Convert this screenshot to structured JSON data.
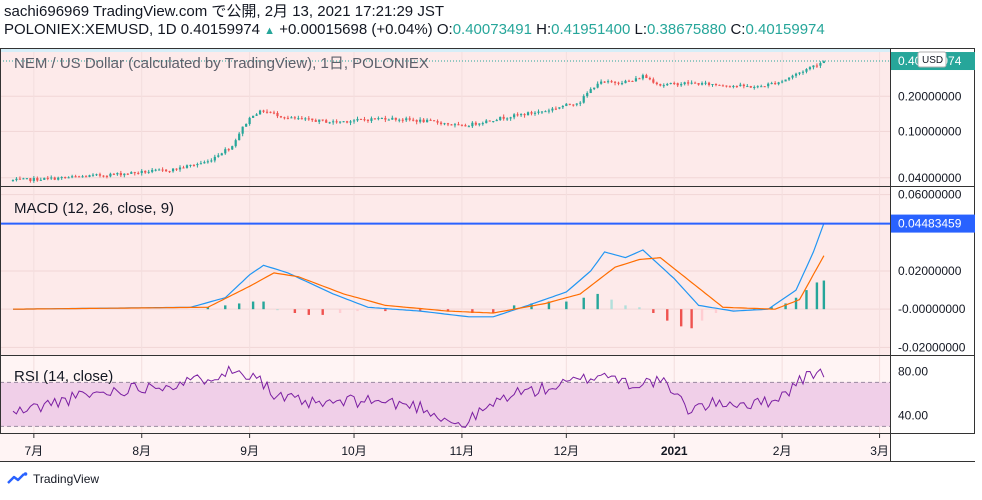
{
  "header": {
    "line1": "sachi696969 TradingView.com で公開, 2月 13, 2021 17:21:29 JST",
    "symbol": "POLONIEX:XEMUSD, 1D",
    "last": "0.40159974",
    "change_arrow": "▲",
    "change": "+0.00015698 (+0.04%)",
    "o_label": "O:",
    "o": "0.40073491",
    "h_label": "H:",
    "h": "0.41951400",
    "l_label": "L:",
    "l": "0.38675880",
    "c_label": "C:",
    "c": "0.40159974"
  },
  "chart_data": [
    {
      "type": "candlestick",
      "title": "NEM / US Dollar (calculated by TradingView), 1日, POLONIEX",
      "currency_badge": "USD",
      "last_price_label": "0.40159974",
      "y_scale": "log",
      "ylim": [
        0.034,
        0.48
      ],
      "y_ticks": [
        "0.20000000",
        "0.10000000",
        "0.04000000"
      ],
      "y_tick_values": [
        0.2,
        0.1,
        0.04
      ],
      "x_tick_labels": [
        "7月",
        "8月",
        "9月",
        "10月",
        "11月",
        "12月",
        "2021",
        "2月",
        "3月"
      ],
      "close_path": [
        [
          "2020-06-25",
          0.038
        ],
        [
          "2020-07-10",
          0.04
        ],
        [
          "2020-07-25",
          0.043
        ],
        [
          "2020-08-10",
          0.047
        ],
        [
          "2020-08-20",
          0.055
        ],
        [
          "2020-08-27",
          0.075
        ],
        [
          "2020-09-02",
          0.14
        ],
        [
          "2020-09-05",
          0.15
        ],
        [
          "2020-09-12",
          0.13
        ],
        [
          "2020-09-25",
          0.12
        ],
        [
          "2020-10-10",
          0.13
        ],
        [
          "2020-10-25",
          0.12
        ],
        [
          "2020-11-01",
          0.11
        ],
        [
          "2020-11-12",
          0.13
        ],
        [
          "2020-11-25",
          0.15
        ],
        [
          "2020-12-05",
          0.18
        ],
        [
          "2020-12-10",
          0.26
        ],
        [
          "2020-12-20",
          0.27
        ],
        [
          "2020-12-23",
          0.3
        ],
        [
          "2020-12-28",
          0.25
        ],
        [
          "2021-01-05",
          0.26
        ],
        [
          "2021-01-15",
          0.25
        ],
        [
          "2021-01-25",
          0.24
        ],
        [
          "2021-02-01",
          0.27
        ],
        [
          "2021-02-07",
          0.33
        ],
        [
          "2021-02-13",
          0.4
        ]
      ],
      "grid": true
    },
    {
      "type": "line",
      "title": "MACD (12, 26, close, 9)",
      "last_value_label": "0.04483459",
      "ylim": [
        -0.024,
        0.064
      ],
      "y_ticks": [
        "0.06000000",
        "0.02000000",
        "-0.00000000",
        "-0.02000000"
      ],
      "y_tick_values": [
        0.06,
        0.02,
        0.0,
        -0.02
      ],
      "macd_line": [
        [
          "2020-06-25",
          0.0
        ],
        [
          "2020-08-15",
          0.001
        ],
        [
          "2020-08-25",
          0.006
        ],
        [
          "2020-09-01",
          0.018
        ],
        [
          "2020-09-05",
          0.023
        ],
        [
          "2020-09-12",
          0.019
        ],
        [
          "2020-09-25",
          0.008
        ],
        [
          "2020-10-05",
          0.001
        ],
        [
          "2020-10-20",
          -0.001
        ],
        [
          "2020-11-03",
          -0.004
        ],
        [
          "2020-11-10",
          -0.004
        ],
        [
          "2020-11-20",
          0.002
        ],
        [
          "2020-12-01",
          0.009
        ],
        [
          "2020-12-08",
          0.02
        ],
        [
          "2020-12-12",
          0.03
        ],
        [
          "2020-12-18",
          0.027
        ],
        [
          "2020-12-23",
          0.031
        ],
        [
          "2021-01-01",
          0.016
        ],
        [
          "2021-01-08",
          0.002
        ],
        [
          "2021-01-18",
          -0.001
        ],
        [
          "2021-01-28",
          0.0
        ],
        [
          "2021-02-05",
          0.01
        ],
        [
          "2021-02-10",
          0.03
        ],
        [
          "2021-02-13",
          0.045
        ]
      ],
      "signal_line": [
        [
          "2020-06-25",
          0.0
        ],
        [
          "2020-08-20",
          0.001
        ],
        [
          "2020-09-01",
          0.012
        ],
        [
          "2020-09-08",
          0.019
        ],
        [
          "2020-09-15",
          0.017
        ],
        [
          "2020-09-28",
          0.008
        ],
        [
          "2020-10-10",
          0.002
        ],
        [
          "2020-10-28",
          -0.001
        ],
        [
          "2020-11-10",
          -0.002
        ],
        [
          "2020-11-25",
          0.003
        ],
        [
          "2020-12-05",
          0.008
        ],
        [
          "2020-12-15",
          0.022
        ],
        [
          "2020-12-22",
          0.026
        ],
        [
          "2020-12-28",
          0.027
        ],
        [
          "2021-01-06",
          0.014
        ],
        [
          "2021-01-15",
          0.001
        ],
        [
          "2021-01-30",
          0.0
        ],
        [
          "2021-02-06",
          0.005
        ],
        [
          "2021-02-13",
          0.028
        ]
      ],
      "histogram": [
        [
          "2020-08-20",
          0.001
        ],
        [
          "2020-08-25",
          0.002
        ],
        [
          "2020-08-29",
          0.003
        ],
        [
          "2020-09-02",
          0.004
        ],
        [
          "2020-09-05",
          0.004
        ],
        [
          "2020-09-09",
          0.0
        ],
        [
          "2020-09-14",
          -0.002
        ],
        [
          "2020-09-18",
          -0.003
        ],
        [
          "2020-09-22",
          -0.003
        ],
        [
          "2020-09-27",
          -0.002
        ],
        [
          "2020-10-02",
          -0.001
        ],
        [
          "2020-10-10",
          -0.001
        ],
        [
          "2020-10-20",
          -0.001
        ],
        [
          "2020-10-28",
          -0.001
        ],
        [
          "2020-11-04",
          -0.002
        ],
        [
          "2020-11-10",
          -0.002
        ],
        [
          "2020-11-16",
          0.002
        ],
        [
          "2020-11-21",
          0.003
        ],
        [
          "2020-11-26",
          0.004
        ],
        [
          "2020-12-01",
          0.004
        ],
        [
          "2020-12-06",
          0.006
        ],
        [
          "2020-12-10",
          0.008
        ],
        [
          "2020-12-14",
          0.005
        ],
        [
          "2020-12-18",
          0.002
        ],
        [
          "2020-12-22",
          0.001
        ],
        [
          "2020-12-26",
          -0.002
        ],
        [
          "2020-12-30",
          -0.006
        ],
        [
          "2021-01-03",
          -0.009
        ],
        [
          "2021-01-06",
          -0.01
        ],
        [
          "2021-01-09",
          -0.006
        ],
        [
          "2021-01-13",
          -0.002
        ],
        [
          "2021-01-18",
          -0.001
        ],
        [
          "2021-01-24",
          0.0
        ],
        [
          "2021-01-29",
          0.001
        ],
        [
          "2021-02-02",
          0.003
        ],
        [
          "2021-02-05",
          0.006
        ],
        [
          "2021-02-08",
          0.01
        ],
        [
          "2021-02-11",
          0.014
        ],
        [
          "2021-02-13",
          0.015
        ]
      ],
      "grid": true
    },
    {
      "type": "line",
      "title": "RSI (14, close)",
      "ylim": [
        24,
        94
      ],
      "band": [
        30,
        70
      ],
      "y_ticks": [
        "80.00",
        "40.00"
      ],
      "y_tick_values": [
        80,
        40
      ],
      "rsi": [
        [
          "2020-06-25",
          42
        ],
        [
          "2020-07-15",
          58
        ],
        [
          "2020-08-01",
          66
        ],
        [
          "2020-08-15",
          70
        ],
        [
          "2020-08-25",
          80
        ],
        [
          "2020-09-03",
          78
        ],
        [
          "2020-09-08",
          57
        ],
        [
          "2020-09-20",
          50
        ],
        [
          "2020-10-05",
          54
        ],
        [
          "2020-10-20",
          48
        ],
        [
          "2020-11-01",
          30
        ],
        [
          "2020-11-05",
          40
        ],
        [
          "2020-11-15",
          60
        ],
        [
          "2020-11-25",
          64
        ],
        [
          "2020-12-05",
          72
        ],
        [
          "2020-12-12",
          78
        ],
        [
          "2020-12-20",
          68
        ],
        [
          "2020-12-28",
          72
        ],
        [
          "2021-01-05",
          46
        ],
        [
          "2021-01-15",
          52
        ],
        [
          "2021-01-25",
          50
        ],
        [
          "2021-02-01",
          58
        ],
        [
          "2021-02-07",
          74
        ],
        [
          "2021-02-13",
          80
        ]
      ],
      "grid": true
    }
  ],
  "colors": {
    "background_upper": "#fdeaea",
    "background_lower": "#fff4f4",
    "rsi_band": "#f0cfe8",
    "candle_up": "#26a69a",
    "candle_down": "#ef5350",
    "macd": "#2196f3",
    "signal": "#ff6d00",
    "hist_up": "#26a69a",
    "hist_up_weak": "#b2dfdb",
    "hist_down": "#ef5350",
    "hist_down_weak": "#ffcdd2",
    "rsi_line": "#7b1fa2",
    "price_badge": "#26a69a",
    "macd_badge": "#2962ff"
  },
  "footer": {
    "brand": "TradingView",
    "logo_icon": "tradingview-logo-icon"
  }
}
